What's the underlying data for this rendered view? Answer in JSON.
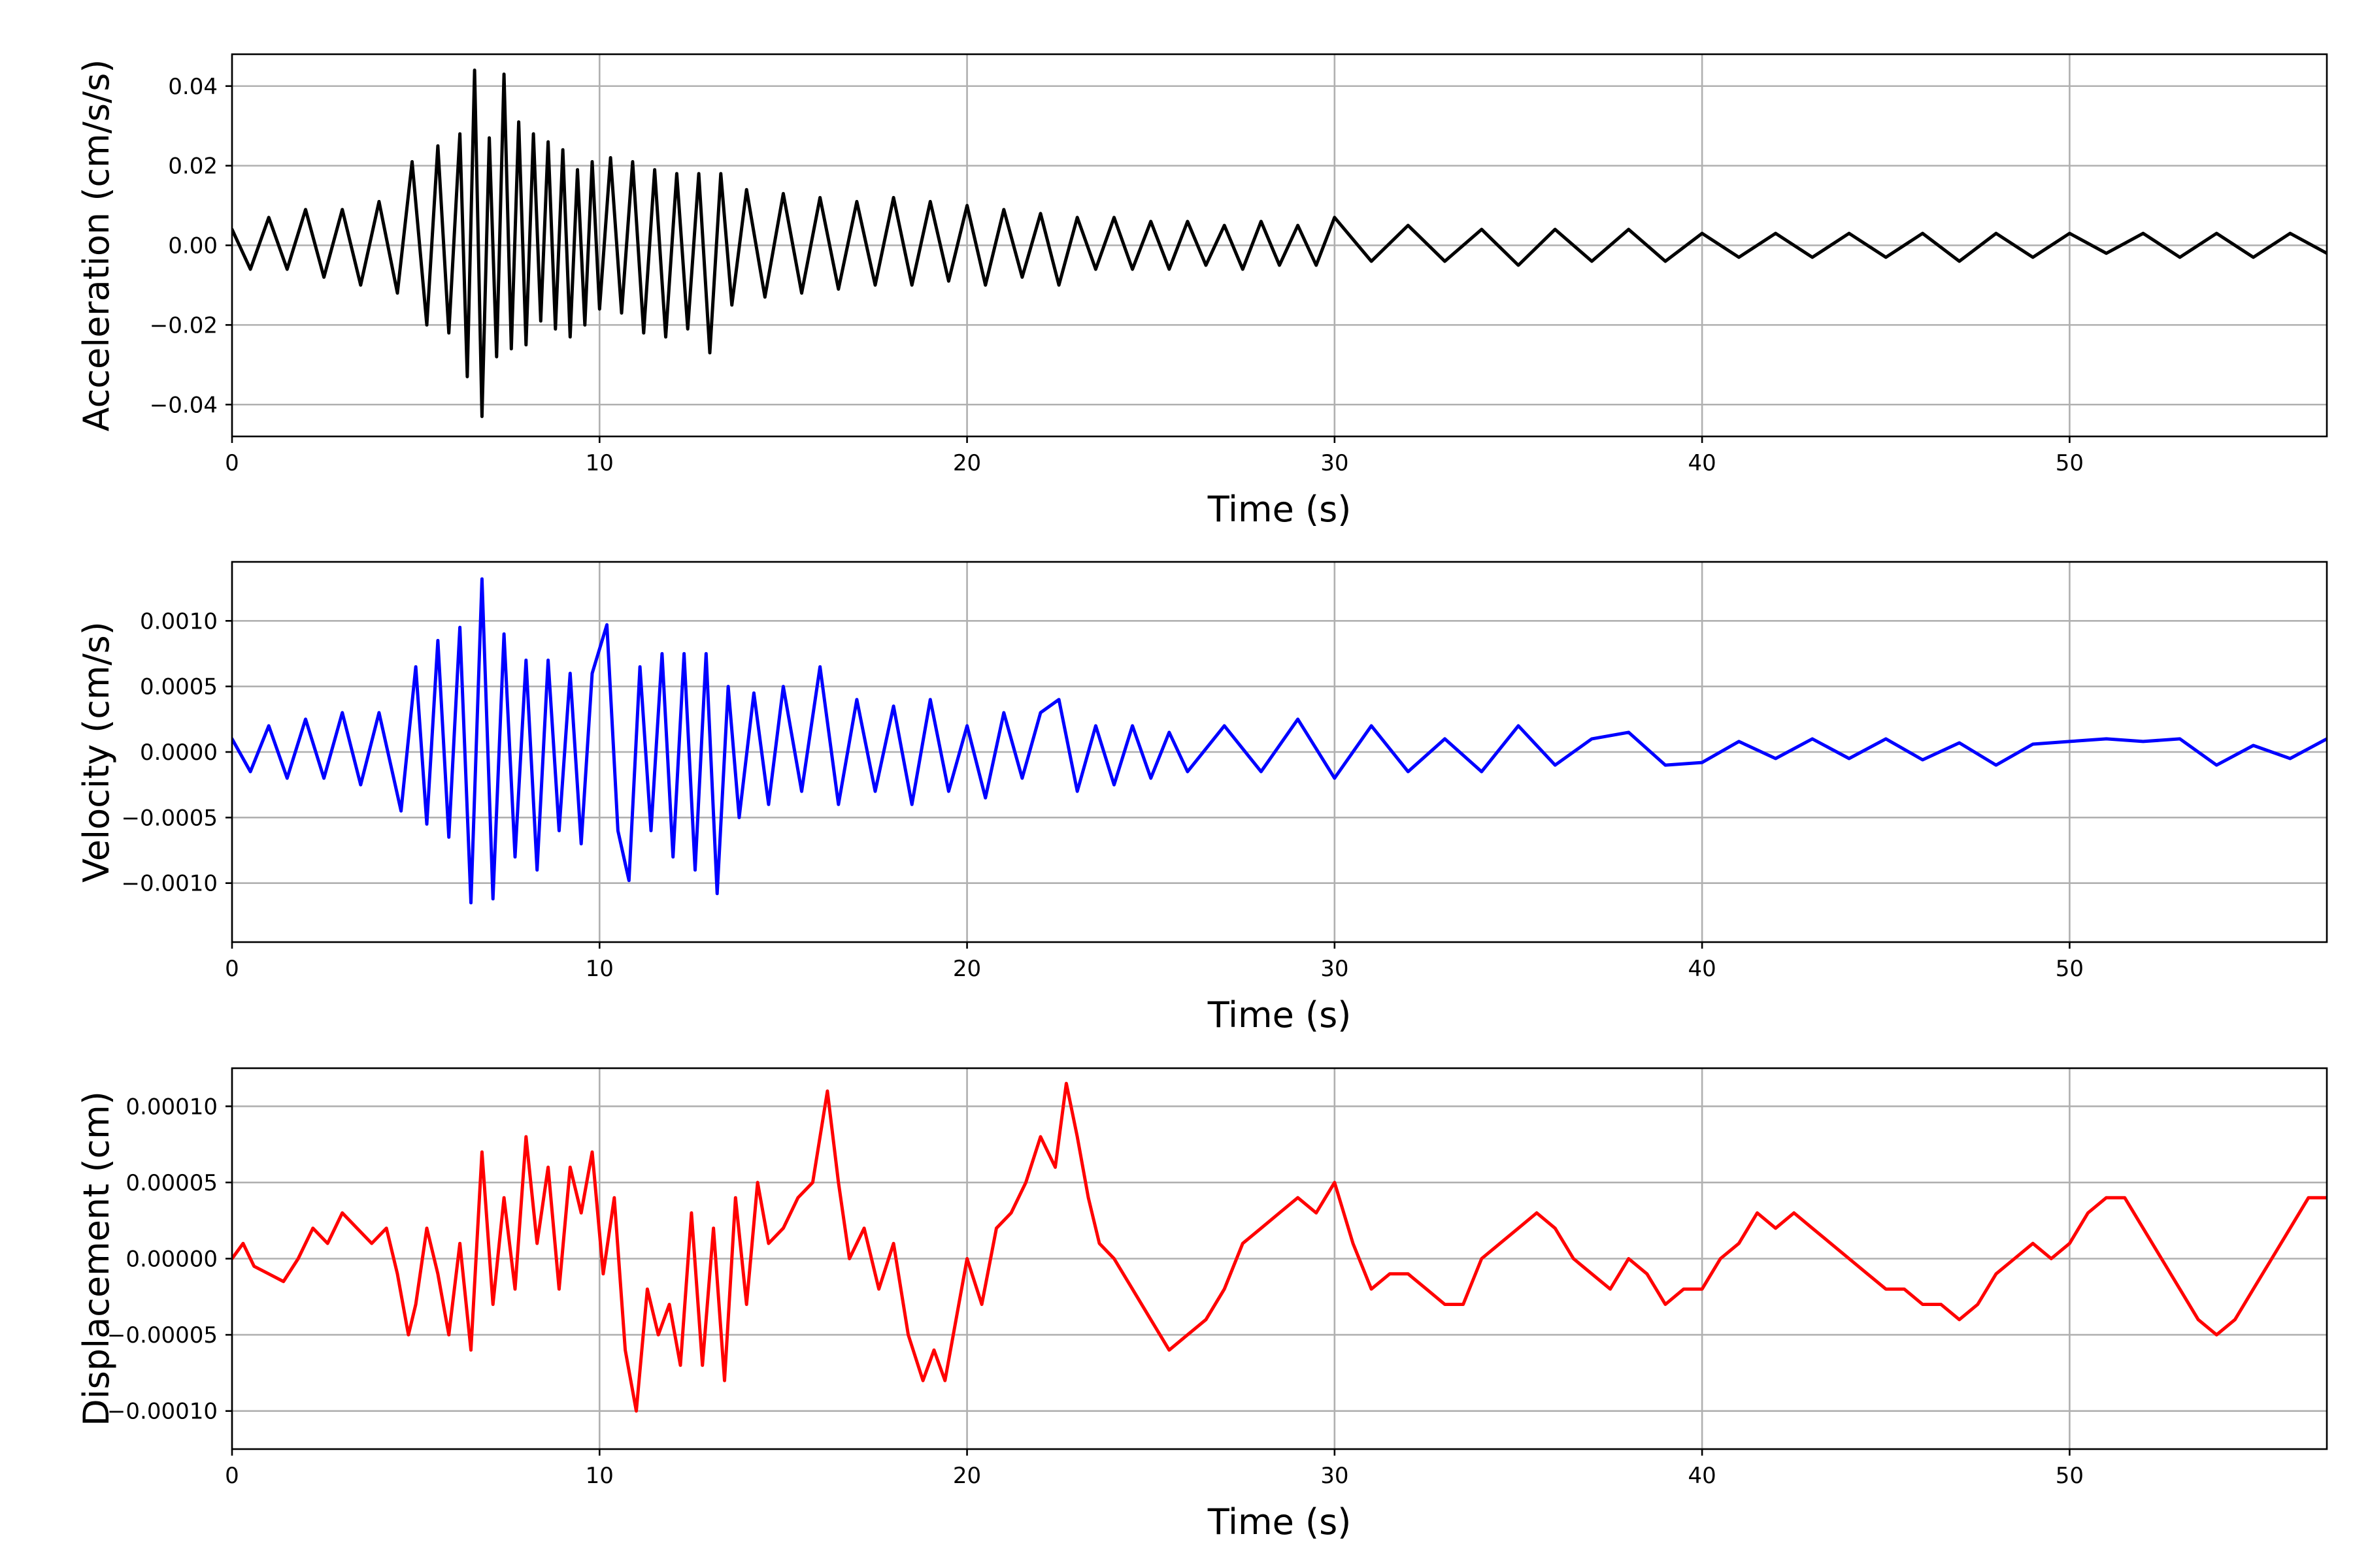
{
  "chart_data": [
    {
      "type": "line",
      "name": "acceleration",
      "xlabel": "Time (s)",
      "ylabel": "Acceleration (cm/s/s)",
      "xlim": [
        0,
        57
      ],
      "ylim": [
        -0.048,
        0.048
      ],
      "xticks": [
        0,
        10,
        20,
        30,
        40,
        50
      ],
      "xtick_labels": [
        "0",
        "10",
        "20",
        "30",
        "40",
        "50"
      ],
      "yticks": [
        -0.04,
        -0.02,
        0.0,
        0.02,
        0.04
      ],
      "ytick_labels": [
        "−0.04",
        "−0.02",
        "0.00",
        "0.02",
        "0.04"
      ],
      "grid": true,
      "color": "#000000",
      "series": [
        {
          "x": [
            0.0,
            0.5,
            1.0,
            1.5,
            2.0,
            2.5,
            3.0,
            3.5,
            4.0,
            4.5,
            4.9,
            5.3,
            5.6,
            5.9,
            6.2,
            6.4,
            6.6,
            6.8,
            7.0,
            7.2,
            7.4,
            7.6,
            7.8,
            8.0,
            8.2,
            8.4,
            8.6,
            8.8,
            9.0,
            9.2,
            9.4,
            9.6,
            9.8,
            10.0,
            10.3,
            10.6,
            10.9,
            11.2,
            11.5,
            11.8,
            12.1,
            12.4,
            12.7,
            13.0,
            13.3,
            13.6,
            14.0,
            14.5,
            15.0,
            15.5,
            16.0,
            16.5,
            17.0,
            17.5,
            18.0,
            18.5,
            19.0,
            19.5,
            20.0,
            20.5,
            21.0,
            21.5,
            22.0,
            22.5,
            23.0,
            23.5,
            24.0,
            24.5,
            25.0,
            25.5,
            26.0,
            26.5,
            27.0,
            27.5,
            28.0,
            28.5,
            29.0,
            29.5,
            30.0,
            31.0,
            32.0,
            33.0,
            34.0,
            35.0,
            36.0,
            37.0,
            38.0,
            39.0,
            40.0,
            41.0,
            42.0,
            43.0,
            44.0,
            45.0,
            46.0,
            47.0,
            48.0,
            49.0,
            50.0,
            51.0,
            52.0,
            53.0,
            54.0,
            55.0,
            56.0,
            57.0
          ],
          "y": [
            0.004,
            -0.006,
            0.007,
            -0.006,
            0.009,
            -0.008,
            0.009,
            -0.01,
            0.011,
            -0.012,
            0.021,
            -0.02,
            0.025,
            -0.022,
            0.028,
            -0.033,
            0.044,
            -0.043,
            0.027,
            -0.028,
            0.043,
            -0.026,
            0.031,
            -0.025,
            0.028,
            -0.019,
            0.026,
            -0.021,
            0.024,
            -0.023,
            0.019,
            -0.02,
            0.021,
            -0.016,
            0.022,
            -0.017,
            0.021,
            -0.022,
            0.019,
            -0.023,
            0.018,
            -0.021,
            0.018,
            -0.027,
            0.018,
            -0.015,
            0.014,
            -0.013,
            0.013,
            -0.012,
            0.012,
            -0.011,
            0.011,
            -0.01,
            0.012,
            -0.01,
            0.011,
            -0.009,
            0.01,
            -0.01,
            0.009,
            -0.008,
            0.008,
            -0.01,
            0.007,
            -0.006,
            0.007,
            -0.006,
            0.006,
            -0.006,
            0.006,
            -0.005,
            0.005,
            -0.006,
            0.006,
            -0.005,
            0.005,
            -0.005,
            0.007,
            -0.004,
            0.005,
            -0.004,
            0.004,
            -0.005,
            0.004,
            -0.004,
            0.004,
            -0.004,
            0.003,
            -0.003,
            0.003,
            -0.003,
            0.003,
            -0.003,
            0.003,
            -0.004,
            0.003,
            -0.003,
            0.003,
            -0.002,
            0.003,
            -0.003,
            0.003,
            -0.003,
            0.003,
            -0.002
          ]
        }
      ]
    },
    {
      "type": "line",
      "name": "velocity",
      "xlabel": "Time (s)",
      "ylabel": "Velocity (cm/s)",
      "xlim": [
        0,
        57
      ],
      "ylim": [
        -0.00145,
        0.00145
      ],
      "xticks": [
        0,
        10,
        20,
        30,
        40,
        50
      ],
      "xtick_labels": [
        "0",
        "10",
        "20",
        "30",
        "40",
        "50"
      ],
      "yticks": [
        -0.001,
        -0.0005,
        0.0,
        0.0005,
        0.001
      ],
      "ytick_labels": [
        "−0.0010",
        "−0.0005",
        "0.0000",
        "0.0005",
        "0.0010"
      ],
      "grid": true,
      "color": "#0000ff",
      "series": [
        {
          "x": [
            0.0,
            0.5,
            1.0,
            1.5,
            2.0,
            2.5,
            3.0,
            3.5,
            4.0,
            4.6,
            5.0,
            5.3,
            5.6,
            5.9,
            6.2,
            6.5,
            6.8,
            7.1,
            7.4,
            7.7,
            8.0,
            8.3,
            8.6,
            8.9,
            9.2,
            9.5,
            9.8,
            10.2,
            10.5,
            10.8,
            11.1,
            11.4,
            11.7,
            12.0,
            12.3,
            12.6,
            12.9,
            13.2,
            13.5,
            13.8,
            14.2,
            14.6,
            15.0,
            15.5,
            16.0,
            16.5,
            17.0,
            17.5,
            18.0,
            18.5,
            19.0,
            19.5,
            20.0,
            20.5,
            21.0,
            21.5,
            22.0,
            22.5,
            23.0,
            23.5,
            24.0,
            24.5,
            25.0,
            25.5,
            26.0,
            27.0,
            28.0,
            29.0,
            30.0,
            31.0,
            32.0,
            33.0,
            34.0,
            35.0,
            36.0,
            37.0,
            38.0,
            39.0,
            40.0,
            41.0,
            42.0,
            43.0,
            44.0,
            45.0,
            46.0,
            47.0,
            48.0,
            49.0,
            50.0,
            51.0,
            52.0,
            53.0,
            54.0,
            55.0,
            56.0,
            57.0
          ],
          "y": [
            0.0001,
            -0.00015,
            0.0002,
            -0.0002,
            0.00025,
            -0.0002,
            0.0003,
            -0.00025,
            0.0003,
            -0.00045,
            0.00065,
            -0.00055,
            0.00085,
            -0.00065,
            0.00095,
            -0.00115,
            0.00132,
            -0.00112,
            0.0009,
            -0.0008,
            0.0007,
            -0.0009,
            0.0007,
            -0.0006,
            0.0006,
            -0.0007,
            0.0006,
            0.00097,
            -0.0006,
            -0.00098,
            0.00065,
            -0.0006,
            0.00075,
            -0.0008,
            0.00075,
            -0.0009,
            0.00075,
            -0.00108,
            0.0005,
            -0.0005,
            0.00045,
            -0.0004,
            0.0005,
            -0.0003,
            0.00065,
            -0.0004,
            0.0004,
            -0.0003,
            0.00035,
            -0.0004,
            0.0004,
            -0.0003,
            0.0002,
            -0.00035,
            0.0003,
            -0.0002,
            0.0003,
            0.0004,
            -0.0003,
            0.0002,
            -0.00025,
            0.0002,
            -0.0002,
            0.00015,
            -0.00015,
            0.0002,
            -0.00015,
            0.00025,
            -0.0002,
            0.0002,
            -0.00015,
            0.0001,
            -0.00015,
            0.0002,
            -0.0001,
            0.0001,
            0.00015,
            -0.0001,
            -8e-05,
            8e-05,
            -5e-05,
            0.0001,
            -5e-05,
            0.0001,
            -6e-05,
            7e-05,
            -0.0001,
            6e-05,
            8e-05,
            0.0001,
            8e-05,
            0.0001,
            -0.0001,
            5e-05,
            -5e-05,
            0.0001
          ]
        }
      ]
    },
    {
      "type": "line",
      "name": "displacement",
      "xlabel": "Time (s)",
      "ylabel": "Displacement (cm)",
      "xlim": [
        0,
        57
      ],
      "ylim": [
        -0.000125,
        0.000125
      ],
      "xticks": [
        0,
        10,
        20,
        30,
        40,
        50
      ],
      "xtick_labels": [
        "0",
        "10",
        "20",
        "30",
        "40",
        "50"
      ],
      "yticks": [
        -0.0001,
        -5e-05,
        0.0,
        5e-05,
        0.0001
      ],
      "ytick_labels": [
        "−0.00010",
        "−0.00005",
        "0.00000",
        "0.00005",
        "0.00010"
      ],
      "grid": true,
      "color": "#ff0000",
      "series": [
        {
          "x": [
            0.0,
            0.3,
            0.6,
            1.0,
            1.4,
            1.8,
            2.2,
            2.6,
            3.0,
            3.4,
            3.8,
            4.2,
            4.5,
            4.8,
            5.0,
            5.3,
            5.6,
            5.9,
            6.2,
            6.5,
            6.8,
            7.1,
            7.4,
            7.7,
            8.0,
            8.3,
            8.6,
            8.9,
            9.2,
            9.5,
            9.8,
            10.1,
            10.4,
            10.7,
            11.0,
            11.3,
            11.6,
            11.9,
            12.2,
            12.5,
            12.8,
            13.1,
            13.4,
            13.7,
            14.0,
            14.3,
            14.6,
            15.0,
            15.4,
            15.8,
            16.2,
            16.5,
            16.8,
            17.2,
            17.6,
            18.0,
            18.4,
            18.8,
            19.1,
            19.4,
            19.7,
            20.0,
            20.4,
            20.8,
            21.2,
            21.6,
            22.0,
            22.4,
            22.7,
            23.0,
            23.3,
            23.6,
            24.0,
            24.5,
            25.0,
            25.5,
            26.0,
            26.5,
            27.0,
            27.5,
            28.0,
            28.5,
            29.0,
            29.5,
            30.0,
            30.5,
            31.0,
            31.5,
            32.0,
            32.5,
            33.0,
            33.5,
            34.0,
            34.5,
            35.0,
            35.5,
            36.0,
            36.5,
            37.0,
            37.5,
            38.0,
            38.5,
            39.0,
            39.5,
            40.0,
            40.5,
            41.0,
            41.5,
            42.0,
            42.5,
            43.0,
            43.5,
            44.0,
            44.5,
            45.0,
            45.5,
            46.0,
            46.5,
            47.0,
            47.5,
            48.0,
            48.5,
            49.0,
            49.5,
            50.0,
            50.5,
            51.0,
            51.5,
            52.0,
            52.5,
            53.0,
            53.5,
            54.0,
            54.5,
            55.0,
            55.5,
            56.0,
            56.5,
            57.0
          ],
          "y": [
            0.0,
            1e-05,
            -5e-06,
            -1e-05,
            -1.5e-05,
            0.0,
            2e-05,
            1e-05,
            3e-05,
            2e-05,
            1e-05,
            2e-05,
            -1e-05,
            -5e-05,
            -3e-05,
            2e-05,
            -1e-05,
            -5e-05,
            1e-05,
            -6e-05,
            7e-05,
            -3e-05,
            4e-05,
            -2e-05,
            8e-05,
            1e-05,
            6e-05,
            -2e-05,
            6e-05,
            3e-05,
            7e-05,
            -1e-05,
            4e-05,
            -6e-05,
            -0.0001,
            -2e-05,
            -5e-05,
            -3e-05,
            -7e-05,
            3e-05,
            -7e-05,
            2e-05,
            -8e-05,
            4e-05,
            -3e-05,
            5e-05,
            1e-05,
            2e-05,
            4e-05,
            5e-05,
            0.00011,
            5e-05,
            0.0,
            2e-05,
            -2e-05,
            1e-05,
            -5e-05,
            -8e-05,
            -6e-05,
            -8e-05,
            -4e-05,
            0.0,
            -3e-05,
            2e-05,
            3e-05,
            5e-05,
            8e-05,
            6e-05,
            0.000115,
            8e-05,
            4e-05,
            1e-05,
            0.0,
            -2e-05,
            -4e-05,
            -6e-05,
            -5e-05,
            -4e-05,
            -2e-05,
            1e-05,
            2e-05,
            3e-05,
            4e-05,
            3e-05,
            5e-05,
            1e-05,
            -2e-05,
            -1e-05,
            -1e-05,
            -2e-05,
            -3e-05,
            -3e-05,
            0.0,
            1e-05,
            2e-05,
            3e-05,
            2e-05,
            0.0,
            -1e-05,
            -2e-05,
            0.0,
            -1e-05,
            -3e-05,
            -2e-05,
            -2e-05,
            0.0,
            1e-05,
            3e-05,
            2e-05,
            3e-05,
            2e-05,
            1e-05,
            0.0,
            -1e-05,
            -2e-05,
            -2e-05,
            -3e-05,
            -3e-05,
            -4e-05,
            -3e-05,
            -1e-05,
            0.0,
            1e-05,
            0.0,
            1e-05,
            3e-05,
            4e-05,
            4e-05,
            2e-05,
            0.0,
            -2e-05,
            -4e-05,
            -5e-05,
            -4e-05,
            -2e-05,
            0.0,
            2e-05,
            4e-05,
            4e-05
          ]
        }
      ]
    }
  ]
}
